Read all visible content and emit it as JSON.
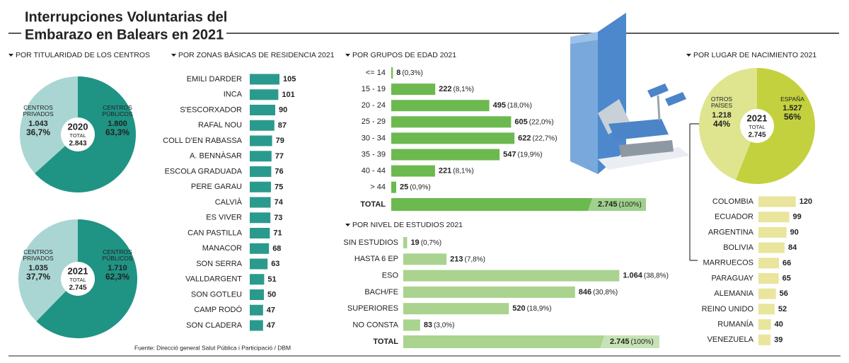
{
  "title": [
    "Interrupciones Voluntarias del",
    "Embarazo en Balears en 2021"
  ],
  "source": "Fuente: Direcció general Salut Pública i Participació / DBM",
  "chart_data": [
    {
      "type": "pie",
      "title": "POR TITULARIDAD DE LOS CENTROS",
      "year": "2020",
      "total_caption": "TOTAL",
      "total": 2843,
      "total_label": "2.843",
      "categories": [
        "CENTROS PRIVADOS",
        "CENTROS PÚBLICOS"
      ],
      "values": [
        36.7,
        63.3
      ],
      "value_labels": [
        "36,7%",
        "63,3%"
      ],
      "counts": [
        1043,
        1800
      ],
      "count_labels": [
        "1.043",
        "1.800"
      ],
      "colors": [
        "#a9d6d3",
        "#1f9384"
      ]
    },
    {
      "type": "pie",
      "year": "2021",
      "total_caption": "TOTAL",
      "total": 2745,
      "total_label": "2.745",
      "categories": [
        "CENTROS PRIVADOS",
        "CENTROS PÚBLICOS"
      ],
      "values": [
        37.7,
        62.3
      ],
      "value_labels": [
        "37,7%",
        "62,3%"
      ],
      "counts": [
        1035,
        1710
      ],
      "count_labels": [
        "1.035",
        "1.710"
      ],
      "colors": [
        "#a9d6d3",
        "#1f9384"
      ]
    },
    {
      "type": "bar",
      "title": "POR ZONAS BÁSICAS DE RESIDENCIA 2021",
      "categories": [
        "EMILI DARDER",
        "INCA",
        "S'ESCORXADOR",
        "RAFAL NOU",
        "COLL D'EN RABASSA",
        "A. BENNÀSAR",
        "ESCOLA GRADUADA",
        "PERE GARAU",
        "CALVIÀ",
        "ES VIVER",
        "CAN PASTILLA",
        "MANACOR",
        "SON SERRA",
        "VALLDARGENT",
        "SON GOTLEU",
        "CAMP RODÓ",
        "SON CLADERA"
      ],
      "values": [
        105,
        101,
        90,
        87,
        79,
        77,
        76,
        75,
        74,
        73,
        71,
        68,
        63,
        51,
        50,
        47,
        47
      ],
      "color": "#2b9a8e"
    },
    {
      "type": "bar",
      "title": "POR GRUPOS DE EDAD 2021",
      "categories": [
        "<= 14",
        "15 - 19",
        "20 - 24",
        "25 - 29",
        "30 - 34",
        "35 - 39",
        "40 - 44",
        "> 44"
      ],
      "values": [
        8,
        222,
        495,
        605,
        622,
        547,
        221,
        25
      ],
      "percents": [
        0.3,
        8.1,
        18.0,
        22.0,
        22.7,
        19.9,
        8.1,
        0.9
      ],
      "percent_labels": [
        "(0,3%)",
        "(8,1%)",
        "(18,0%)",
        "(22,0%)",
        "(22,7%)",
        "(19,9%)",
        "(8,1%)",
        "(0,9%)"
      ],
      "total_caption": "TOTAL",
      "total": 2745,
      "total_label": "2.745",
      "total_percent": 100,
      "total_percent_label": "(100%)",
      "color": "#6cb94f"
    },
    {
      "type": "bar",
      "title": "POR NIVEL DE ESTUDIOS 2021",
      "categories": [
        "SIN ESTUDIOS",
        "HASTA 6 EP",
        "ESO",
        "BACH/FE",
        "SUPERIORES",
        "NO CONSTA"
      ],
      "values": [
        19,
        213,
        1064,
        846,
        520,
        83
      ],
      "value_labels": [
        "19",
        "213",
        "1.064",
        "846",
        "520",
        "83"
      ],
      "percents": [
        0.7,
        7.8,
        38.8,
        30.8,
        18.9,
        3.0
      ],
      "percent_labels": [
        "(0,7%)",
        "(7,8%)",
        "(38,8%)",
        "(30,8%)",
        "(18,9%)",
        "(3,0%)"
      ],
      "total_caption": "TOTAL",
      "total": 2745,
      "total_label": "2.745",
      "total_percent": 100,
      "total_percent_label": "(100%)",
      "color": "#a9d38e"
    },
    {
      "type": "pie",
      "title": "POR LUGAR DE NACIMIENTO 2021",
      "year": "2021",
      "total_caption": "TOTAL",
      "total": 2745,
      "total_label": "2.745",
      "categories": [
        "OTROS PAÍSES",
        "ESPAÑA"
      ],
      "values": [
        44,
        56
      ],
      "value_labels": [
        "44%",
        "56%"
      ],
      "counts": [
        1218,
        1527
      ],
      "count_labels": [
        "1.218",
        "1.527"
      ],
      "colors": [
        "#dfe58f",
        "#c4d13f"
      ]
    },
    {
      "type": "bar",
      "categories": [
        "COLOMBIA",
        "ECUADOR",
        "ARGENTINA",
        "BOLIVIA",
        "MARRUECOS",
        "PARAGUAY",
        "ALEMANIA",
        "REINO UNIDO",
        "RUMANÍA",
        "VENEZUELA"
      ],
      "values": [
        120,
        99,
        90,
        84,
        66,
        65,
        56,
        52,
        40,
        39
      ],
      "color": "#e9e59c"
    }
  ]
}
